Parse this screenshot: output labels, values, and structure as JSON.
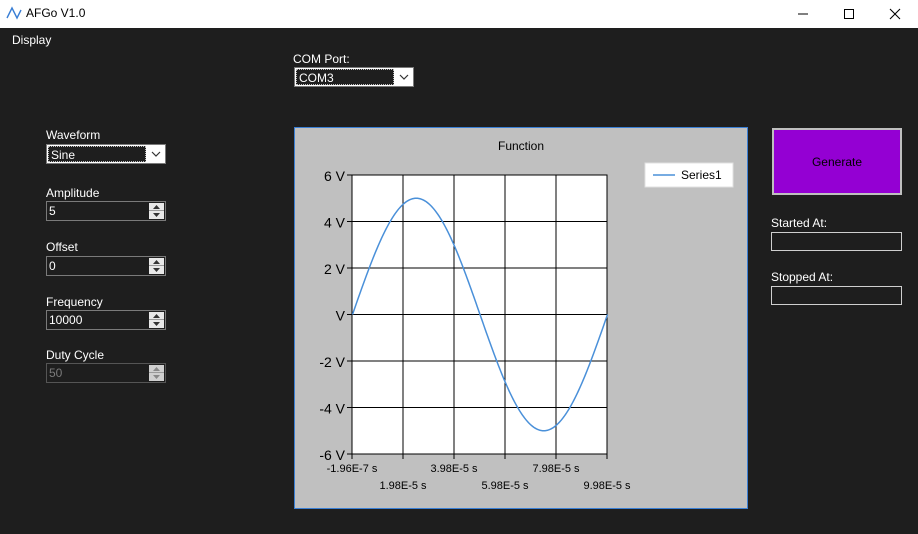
{
  "window": {
    "title": "AFGo V1.0",
    "icon": "waveform-icon",
    "controls": [
      "minimize-icon",
      "maximize-icon",
      "close-icon"
    ]
  },
  "menu": {
    "display_label": "Display"
  },
  "com_port": {
    "label": "COM Port:",
    "value": "COM3"
  },
  "waveform": {
    "label": "Waveform",
    "value": "Sine"
  },
  "amplitude": {
    "label": "Amplitude",
    "value": "5"
  },
  "offset": {
    "label": "Offset",
    "value": "0"
  },
  "frequency": {
    "label": "Frequency",
    "value": "10000"
  },
  "duty_cycle": {
    "label": "Duty Cycle",
    "value": "50",
    "enabled": false
  },
  "generate": {
    "label": "Generate",
    "color": "#9400d3"
  },
  "started_at": {
    "label": "Started At:",
    "value": ""
  },
  "stopped_at": {
    "label": "Stopped At:",
    "value": ""
  },
  "chart_data": {
    "type": "line",
    "title": "Function",
    "legend": {
      "entries": [
        "Series1"
      ],
      "placement": "top-right"
    },
    "grid": true,
    "xlim": [
      -1.96e-07,
      9.98e-05
    ],
    "ylim": [
      -6,
      6
    ],
    "x_tick_labels": [
      "-1.96E-7 s",
      "1.98E-5 s",
      "3.98E-5 s",
      "5.98E-5 s",
      "7.98E-5 s",
      "9.98E-5 s"
    ],
    "y_tick_labels": [
      "6 V",
      "4 V",
      "2 V",
      "V",
      "-2 V",
      "-4 V",
      "-6 V"
    ],
    "series": [
      {
        "name": "Series1",
        "color": "#4a90d9",
        "amplitude": 5,
        "offset": 0,
        "frequency": 10000,
        "x": [
          0,
          5e-06,
          1e-05,
          1.5e-05,
          2e-05,
          2.5e-05,
          3e-05,
          3.5e-05,
          4e-05,
          4.5e-05,
          5e-05,
          5.5e-05,
          6e-05,
          6.5e-05,
          7e-05,
          7.5e-05,
          8e-05,
          8.5e-05,
          9e-05,
          9.5e-05,
          0.0001
        ],
        "y": [
          0,
          1.55,
          2.94,
          4.05,
          4.76,
          5.0,
          4.76,
          4.05,
          2.94,
          1.55,
          0,
          -1.55,
          -2.94,
          -4.05,
          -4.76,
          -5.0,
          -4.76,
          -4.05,
          -2.94,
          -1.55,
          0
        ]
      }
    ]
  }
}
